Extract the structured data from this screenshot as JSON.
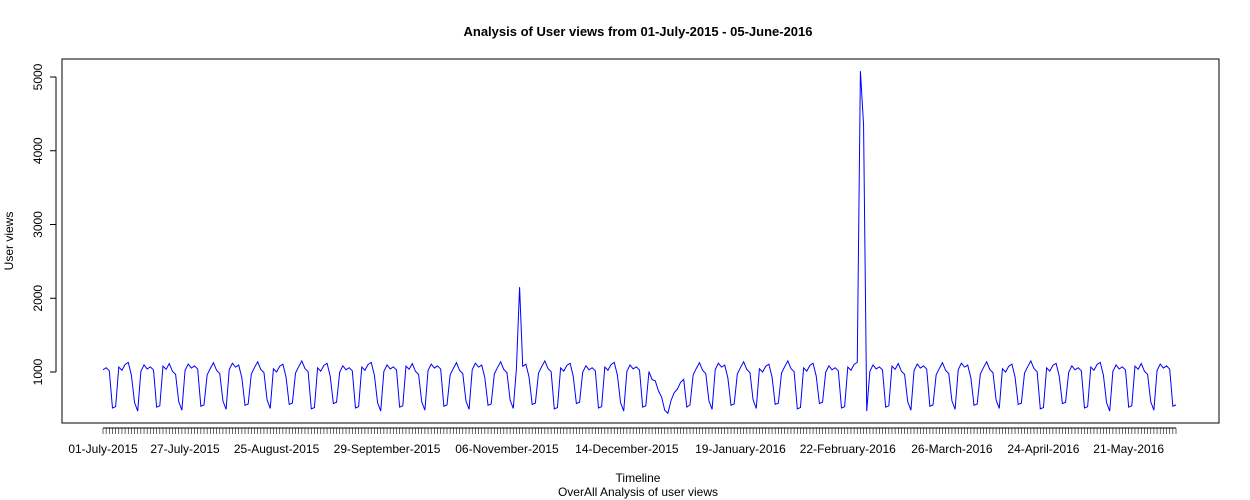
{
  "chart_data": {
    "type": "line",
    "title": "Analysis of User views from 01-July-2015 - 05-June-2016",
    "xlabel": "Timeline",
    "subtitle": "OverAll Analysis of user views",
    "ylabel": "User views",
    "x_start": "2015-07-01",
    "x_end": "2016-06-05",
    "ylim": [
      380,
      5180
    ],
    "y_ticks": [
      1000,
      2000,
      3000,
      4000,
      5000
    ],
    "x_tick_labels": [
      {
        "label": "01-July-2015",
        "date": "2015-07-01"
      },
      {
        "label": "27-July-2015",
        "date": "2015-07-27"
      },
      {
        "label": "25-August-2015",
        "date": "2015-08-25"
      },
      {
        "label": "29-September-2015",
        "date": "2015-09-29"
      },
      {
        "label": "06-November-2015",
        "date": "2015-11-06"
      },
      {
        "label": "14-December-2015",
        "date": "2015-12-14"
      },
      {
        "label": "19-January-2016",
        "date": "2016-01-19"
      },
      {
        "label": "22-February-2016",
        "date": "2016-02-22"
      },
      {
        "label": "26-March-2016",
        "date": "2016-03-26"
      },
      {
        "label": "24-April-2016",
        "date": "2016-04-24"
      },
      {
        "label": "21-May-2016",
        "date": "2016-05-21"
      }
    ],
    "grid": false,
    "legend": "none",
    "line_color": "#0000ff",
    "weekly_pattern_weekday_views": [
      1020,
      1060,
      1090,
      1070,
      980
    ],
    "weekly_pattern_weekend_views": [
      560,
      530
    ],
    "spikes": [
      {
        "date": "2015-11-10",
        "value": 2150
      },
      {
        "date": "2016-02-26",
        "value": 5080
      },
      {
        "date": "2016-02-27",
        "value": 4350
      }
    ],
    "holiday_dip": {
      "date_range": [
        "2015-12-20",
        "2016-01-03"
      ],
      "min_value": 430
    }
  }
}
